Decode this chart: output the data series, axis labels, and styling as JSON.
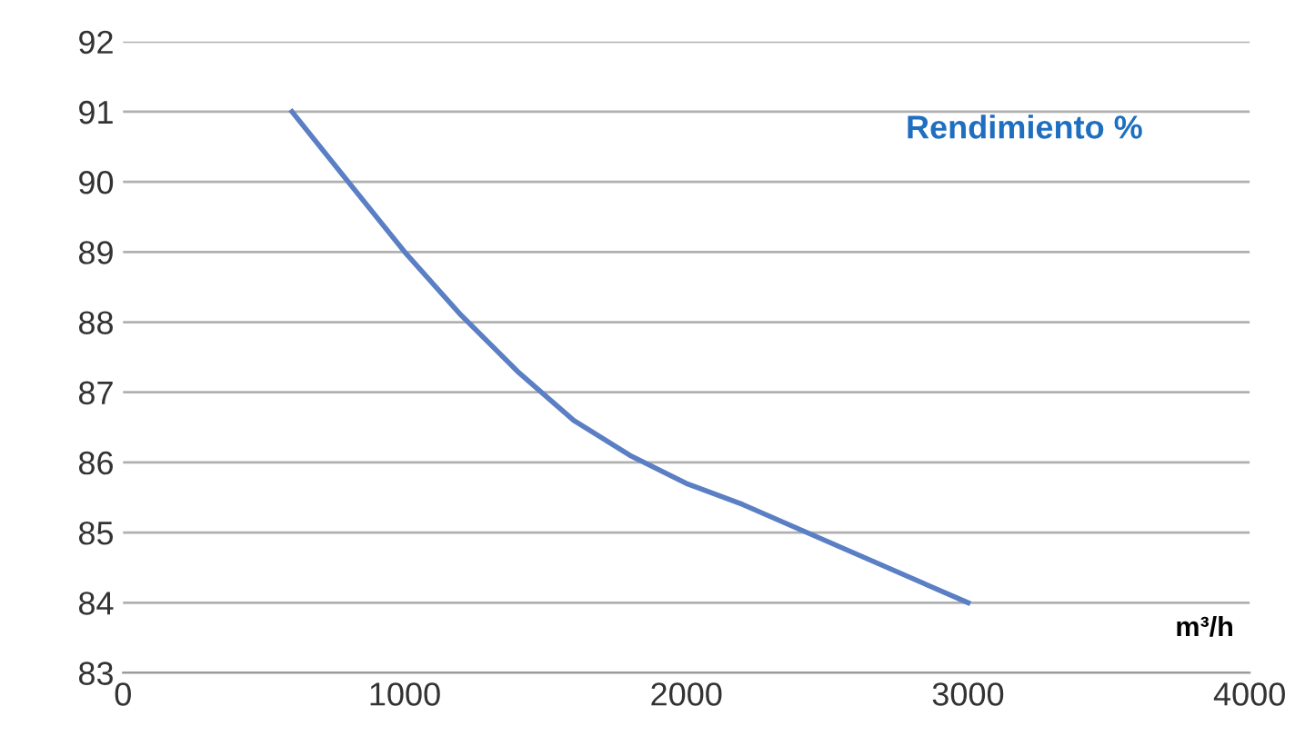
{
  "chart_data": {
    "type": "line",
    "xlabel": "m³/h",
    "annotations": [
      "Rendimiento %"
    ],
    "x": [
      600,
      800,
      1000,
      1200,
      1400,
      1600,
      1800,
      2000,
      2200,
      2400,
      2600,
      2800,
      3000
    ],
    "series": [
      {
        "color": "#5b7fc4",
        "values": [
          91,
          90,
          89,
          88.1,
          87.3,
          86.6,
          86.1,
          85.7,
          85.4,
          85.05,
          84.7,
          84.35,
          84.0
        ]
      }
    ],
    "xlim": [
      0,
      4000
    ],
    "xticks": [
      0,
      1000,
      2000,
      3000,
      4000
    ],
    "ylim": [
      83,
      92
    ],
    "yticks": [
      83,
      84,
      85,
      86,
      87,
      88,
      89,
      90,
      91,
      92
    ],
    "grid": "y",
    "marker": "none",
    "line_style": "solid"
  }
}
